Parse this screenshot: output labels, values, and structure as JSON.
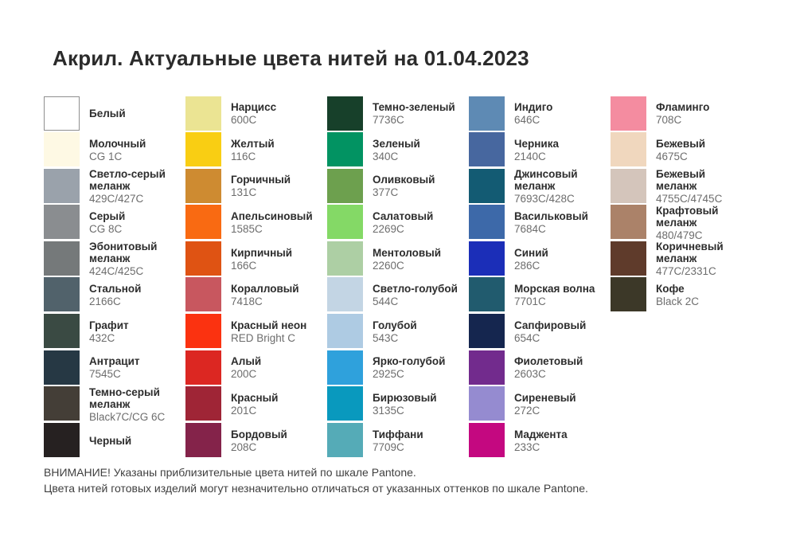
{
  "title": "Акрил. Актуальные цвета нитей на 01.04.2023",
  "palette": {
    "columns": [
      {
        "items": [
          {
            "name": "Белый",
            "code": "",
            "color": "#ffffff",
            "border": true
          },
          {
            "name": "Молочный",
            "code": "CG 1C",
            "color": "#fef9e4",
            "border": false
          },
          {
            "name": "Светло-серый\nмеланж",
            "code": "429C/427C",
            "color": "#9aa2ab",
            "border": false
          },
          {
            "name": "Серый",
            "code": "CG 8C",
            "color": "#8a8d90",
            "border": false
          },
          {
            "name": "Эбонитовый\nмеланж",
            "code": "424C/425C",
            "color": "#75797a",
            "border": false
          },
          {
            "name": "Стальной",
            "code": "2166C",
            "color": "#51626b",
            "border": false
          },
          {
            "name": "Графит",
            "code": "432C",
            "color": "#3a4a43",
            "border": false
          },
          {
            "name": "Антрацит",
            "code": "7545C",
            "color": "#263844",
            "border": false
          },
          {
            "name": "Темно-серый\nмеланж",
            "code": "Black7C/CG 6C",
            "color": "#443e37",
            "border": false
          },
          {
            "name": "Черный",
            "code": "",
            "color": "#262121",
            "border": false
          }
        ]
      },
      {
        "items": [
          {
            "name": "Нарцисс",
            "code": "600C",
            "color": "#ebe493",
            "border": false
          },
          {
            "name": "Желтый",
            "code": "116C",
            "color": "#f9ce13",
            "border": false
          },
          {
            "name": "Горчичный",
            "code": "131C",
            "color": "#ce8b31",
            "border": false
          },
          {
            "name": "Апельсиновый",
            "code": "1585C",
            "color": "#f96a12",
            "border": false
          },
          {
            "name": "Кирпичный",
            "code": "166C",
            "color": "#df5313",
            "border": false
          },
          {
            "name": "Коралловый",
            "code": "7418C",
            "color": "#c8575f",
            "border": false
          },
          {
            "name": "Красный неон",
            "code": "RED Bright C",
            "color": "#fb3210",
            "border": false
          },
          {
            "name": "Алый",
            "code": "200C",
            "color": "#dc2722",
            "border": false
          },
          {
            "name": "Красный",
            "code": "201C",
            "color": "#9f2536",
            "border": false
          },
          {
            "name": "Бордовый",
            "code": "208C",
            "color": "#84234a",
            "border": false
          }
        ]
      },
      {
        "items": [
          {
            "name": "Темно-зеленый",
            "code": "7736C",
            "color": "#17402a",
            "border": false
          },
          {
            "name": "Зеленый",
            "code": "340C",
            "color": "#029362",
            "border": false
          },
          {
            "name": "Оливковый",
            "code": "377C",
            "color": "#6da04e",
            "border": false
          },
          {
            "name": "Салатовый",
            "code": "2269C",
            "color": "#84d966",
            "border": false
          },
          {
            "name": "Ментоловый",
            "code": "2260C",
            "color": "#adcfa4",
            "border": false
          },
          {
            "name": "Светло-голубой",
            "code": "544C",
            "color": "#c3d5e4",
            "border": false
          },
          {
            "name": "Голубой",
            "code": "543C",
            "color": "#aecbe3",
            "border": false
          },
          {
            "name": "Ярко-голубой",
            "code": "2925C",
            "color": "#2fa1dc",
            "border": false
          },
          {
            "name": "Бирюзовый",
            "code": "3135C",
            "color": "#0999be",
            "border": false
          },
          {
            "name": "Тиффани",
            "code": "7709C",
            "color": "#55abb7",
            "border": false
          }
        ]
      },
      {
        "items": [
          {
            "name": "Индиго",
            "code": "646C",
            "color": "#5e8ab4",
            "border": false
          },
          {
            "name": "Черника",
            "code": "2140C",
            "color": "#47679f",
            "border": false
          },
          {
            "name": "Джинсовый\nмеланж",
            "code": "7693C/428C",
            "color": "#135b73",
            "border": false
          },
          {
            "name": "Васильковый",
            "code": "7684C",
            "color": "#3d69a9",
            "border": false
          },
          {
            "name": "Синий",
            "code": "286C",
            "color": "#1b2eb8",
            "border": false
          },
          {
            "name": "Морская волна",
            "code": "7701C",
            "color": "#215b6e",
            "border": false
          },
          {
            "name": "Сапфировый",
            "code": "654C",
            "color": "#15264f",
            "border": false
          },
          {
            "name": "Фиолетовый",
            "code": "2603C",
            "color": "#722b8d",
            "border": false
          },
          {
            "name": "Сиреневый",
            "code": "272C",
            "color": "#958bd0",
            "border": false
          },
          {
            "name": "Маджента",
            "code": "233C",
            "color": "#c40880",
            "border": false
          }
        ]
      },
      {
        "items": [
          {
            "name": "Фламинго",
            "code": "708C",
            "color": "#f48ca0",
            "border": false
          },
          {
            "name": "Бежевый",
            "code": "4675C",
            "color": "#f0d7be",
            "border": false
          },
          {
            "name": "Бежевый\nмеланж",
            "code": "4755C/4745C",
            "color": "#d4c5bb",
            "border": false
          },
          {
            "name": "Крафтовый меланж",
            "code": "480/479C",
            "color": "#ab8269",
            "border": false
          },
          {
            "name": "Коричневый\nмеланж",
            "code": "477C/2331C",
            "color": "#5f3b2b",
            "border": false
          },
          {
            "name": "Кофе",
            "code": "Black 2C",
            "color": "#3c3828",
            "border": false
          }
        ]
      }
    ]
  },
  "footer": {
    "line1": "ВНИМАНИЕ! Указаны приблизительные цвета нитей по шкале Pantone.",
    "line2": "Цвета нитей готовых изделий могут незначительно отличаться от указанных оттенков по шкале Pantone."
  }
}
